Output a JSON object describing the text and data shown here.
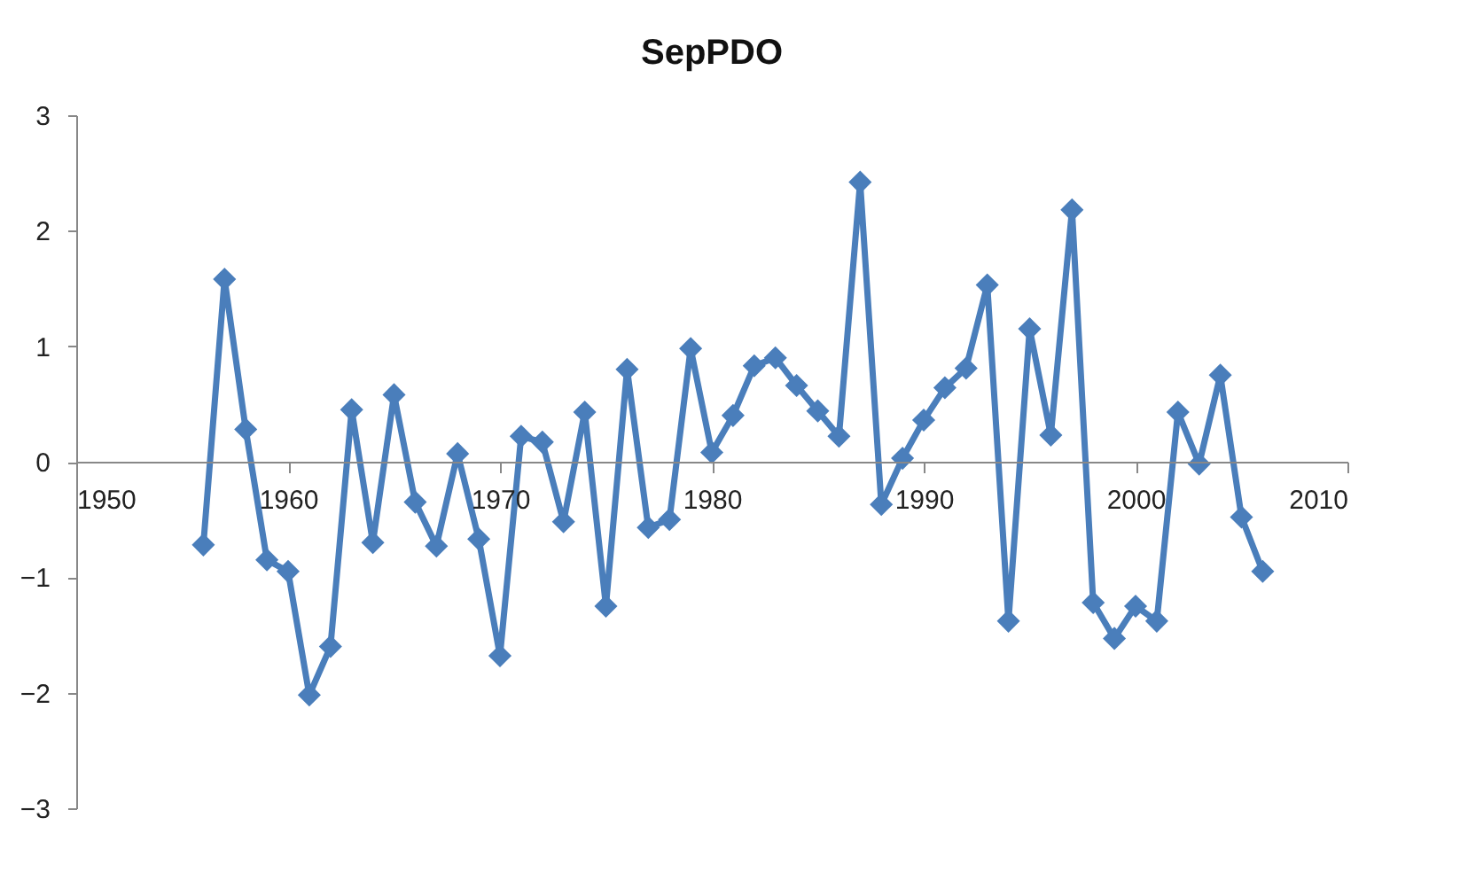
{
  "chart_data": {
    "type": "line",
    "title": "SepPDO",
    "x": [
      1956,
      1957,
      1958,
      1959,
      1960,
      1961,
      1962,
      1963,
      1964,
      1965,
      1966,
      1967,
      1968,
      1969,
      1970,
      1971,
      1972,
      1973,
      1974,
      1975,
      1976,
      1977,
      1978,
      1979,
      1980,
      1981,
      1982,
      1983,
      1984,
      1985,
      1986,
      1987,
      1988,
      1989,
      1990,
      1991,
      1992,
      1993,
      1994,
      1995,
      1996,
      1997,
      1998,
      1999,
      2000,
      2001,
      2002,
      2003,
      2004,
      2005,
      2006
    ],
    "series": [
      {
        "color": "#4a7ebb",
        "values": [
          -0.72,
          1.58,
          0.28,
          -0.85,
          -0.95,
          -2.02,
          -1.6,
          0.45,
          -0.7,
          0.58,
          -0.35,
          -0.73,
          0.07,
          -0.67,
          -1.68,
          0.22,
          0.17,
          -0.52,
          0.43,
          -1.25,
          0.8,
          -0.57,
          -0.5,
          0.98,
          0.08,
          0.4,
          0.83,
          0.9,
          0.66,
          0.44,
          0.22,
          2.42,
          -0.37,
          0.03,
          0.36,
          0.64,
          0.81,
          1.53,
          -1.38,
          1.15,
          0.23,
          2.18,
          -1.22,
          -1.53,
          -1.25,
          -1.38,
          0.43,
          -0.02,
          0.75,
          -0.48,
          -0.95
        ]
      }
    ],
    "xlim": [
      1950,
      2010
    ],
    "xticks": [
      1950,
      1960,
      1970,
      1980,
      1990,
      2000,
      2010
    ],
    "ylim": [
      -3,
      3
    ],
    "yticks": [
      -3,
      -2,
      -1,
      0,
      1,
      2,
      3
    ],
    "grid": false,
    "legend": false,
    "marker": "diamond",
    "line_style": "solid"
  }
}
